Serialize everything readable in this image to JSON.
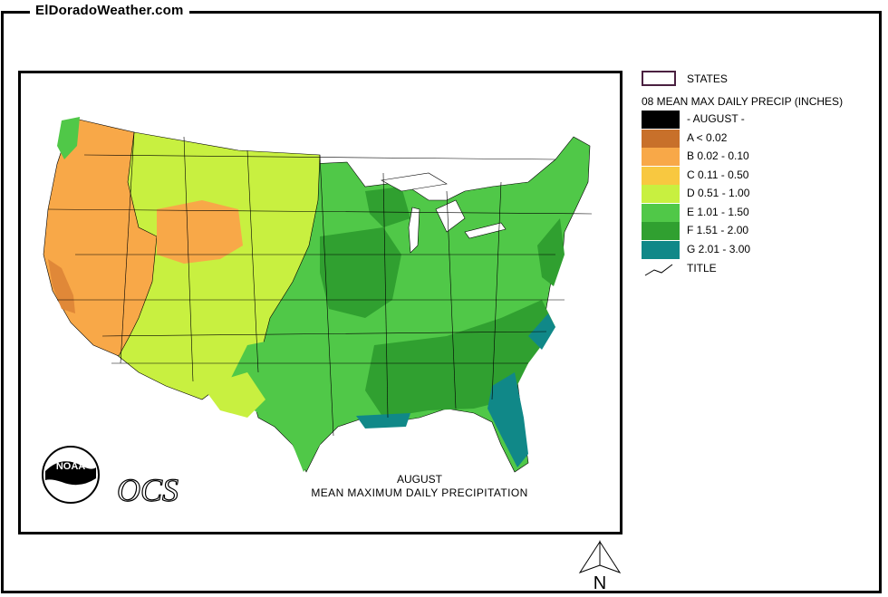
{
  "site": {
    "title": "ElDoradoWeather.com"
  },
  "map": {
    "caption_line1": "AUGUST",
    "caption_line2": "MEAN MAXIMUM DAILY PRECIPITATION",
    "logo_text": "NOAA",
    "ocs_text": "OCS"
  },
  "legend": {
    "states_label": "STATES",
    "title": "08 MEAN MAX DAILY PRECIP (INCHES)",
    "items": [
      {
        "label": "- AUGUST -",
        "color": "#000000"
      },
      {
        "label": "A < 0.02",
        "color": "#c8702a"
      },
      {
        "label": "B 0.02 - 0.10",
        "color": "#f8a848"
      },
      {
        "label": "C 0.11 - 0.50",
        "color": "#f8c840"
      },
      {
        "label": "D 0.51 - 1.00",
        "color": "#c8f040"
      },
      {
        "label": "E 1.01 - 1.50",
        "color": "#50c848"
      },
      {
        "label": "F 1.51 - 2.00",
        "color": "#30a030"
      },
      {
        "label": "G 2.01 - 3.00",
        "color": "#108888"
      }
    ],
    "title_line_label": "TITLE"
  },
  "north": {
    "label": "N"
  }
}
